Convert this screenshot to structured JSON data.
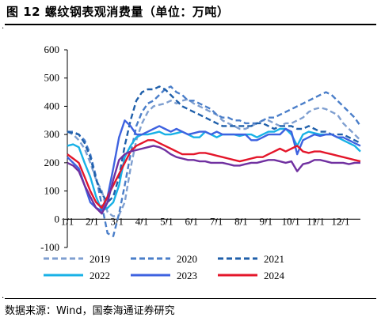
{
  "figure": {
    "title": "图 12 螺纹钢表观消费量（单位：万吨）",
    "source": "数据来源：Wind，国泰海通证券研究"
  },
  "chart_data": {
    "type": "line",
    "title": "图 12 螺纹钢表观消费量（单位：万吨）",
    "xlabel": "",
    "ylabel": "",
    "ylim": [
      -100,
      600
    ],
    "yticks": [
      -100,
      0,
      100,
      200,
      300,
      400,
      500,
      600
    ],
    "xticks": [
      "1/1",
      "2/1",
      "3/1",
      "4/1",
      "5/1",
      "6/1",
      "7/1",
      "8/1",
      "9/1",
      "10/1",
      "11/1",
      "12/1"
    ],
    "x_unit": "week of year (1-52)",
    "grid": false,
    "legend_position": "bottom",
    "series": [
      {
        "name": "2019",
        "color": "#7F9FD0",
        "style": "dashed",
        "values": [
          310,
          300,
          280,
          250,
          200,
          140,
          100,
          25,
          10,
          15,
          60,
          180,
          280,
          340,
          380,
          400,
          405,
          410,
          420,
          410,
          420,
          425,
          410,
          400,
          390,
          380,
          370,
          350,
          340,
          330,
          320,
          320,
          330,
          340,
          350,
          350,
          340,
          330,
          340,
          340,
          350,
          360,
          380,
          390,
          395,
          390,
          380,
          370,
          340,
          320,
          300,
          280
        ]
      },
      {
        "name": "2020",
        "color": "#4A7EC9",
        "style": "dashed",
        "values": [
          310,
          310,
          300,
          280,
          230,
          150,
          50,
          -50,
          -60,
          20,
          120,
          230,
          330,
          380,
          410,
          420,
          440,
          460,
          470,
          450,
          440,
          420,
          420,
          410,
          400,
          390,
          370,
          360,
          360,
          350,
          350,
          340,
          340,
          340,
          350,
          360,
          360,
          370,
          380,
          390,
          400,
          410,
          420,
          430,
          440,
          450,
          440,
          420,
          400,
          380,
          360,
          330
        ]
      },
      {
        "name": "2021",
        "color": "#1F5FAA",
        "style": "dashed",
        "values": [
          310,
          305,
          300,
          270,
          220,
          140,
          90,
          60,
          80,
          150,
          260,
          350,
          420,
          450,
          460,
          460,
          470,
          460,
          440,
          420,
          400,
          390,
          380,
          370,
          360,
          350,
          340,
          330,
          330,
          330,
          330,
          330,
          330,
          340,
          340,
          330,
          320,
          330,
          330,
          330,
          320,
          320,
          330,
          320,
          310,
          310,
          300,
          300,
          300,
          290,
          280,
          270
        ]
      },
      {
        "name": "2022",
        "color": "#18B1E6",
        "style": "solid",
        "values": [
          260,
          265,
          255,
          200,
          150,
          80,
          30,
          40,
          60,
          120,
          220,
          260,
          290,
          300,
          300,
          305,
          310,
          300,
          300,
          305,
          310,
          300,
          290,
          290,
          310,
          300,
          290,
          300,
          300,
          300,
          295,
          300,
          300,
          290,
          300,
          310,
          310,
          320,
          320,
          300,
          260,
          300,
          310,
          305,
          300,
          300,
          300,
          290,
          280,
          270,
          260,
          240
        ]
      },
      {
        "name": "2023",
        "color": "#3E62E0",
        "style": "solid",
        "values": [
          220,
          200,
          180,
          120,
          60,
          40,
          30,
          80,
          180,
          290,
          350,
          330,
          300,
          300,
          310,
          320,
          330,
          320,
          310,
          320,
          310,
          300,
          305,
          310,
          310,
          300,
          310,
          300,
          300,
          300,
          300,
          300,
          280,
          280,
          290,
          300,
          300,
          300,
          320,
          310,
          230,
          280,
          290,
          300,
          295,
          300,
          300,
          290,
          290,
          280,
          270,
          260
        ]
      },
      {
        "name": "2024",
        "color": "#E4162A",
        "style": "solid",
        "values": [
          230,
          215,
          200,
          150,
          100,
          60,
          40,
          80,
          120,
          160,
          200,
          240,
          260,
          270,
          280,
          280,
          270,
          260,
          250,
          240,
          230,
          230,
          230,
          235,
          235,
          230,
          225,
          220,
          215,
          210,
          205,
          210,
          215,
          220,
          220,
          230,
          240,
          250,
          240,
          250,
          260,
          240,
          235,
          240,
          240,
          235,
          230,
          225,
          220,
          215,
          210,
          205
        ]
      },
      {
        "name": "",
        "color": "#7030A0",
        "style": "solid",
        "values": [
          200,
          190,
          170,
          120,
          80,
          40,
          20,
          60,
          140,
          210,
          230,
          240,
          245,
          250,
          255,
          260,
          255,
          245,
          230,
          220,
          215,
          210,
          210,
          205,
          205,
          200,
          200,
          200,
          195,
          190,
          190,
          195,
          200,
          200,
          205,
          210,
          210,
          205,
          200,
          205,
          170,
          195,
          200,
          210,
          210,
          205,
          200,
          200,
          200,
          195,
          200,
          200
        ]
      }
    ]
  }
}
